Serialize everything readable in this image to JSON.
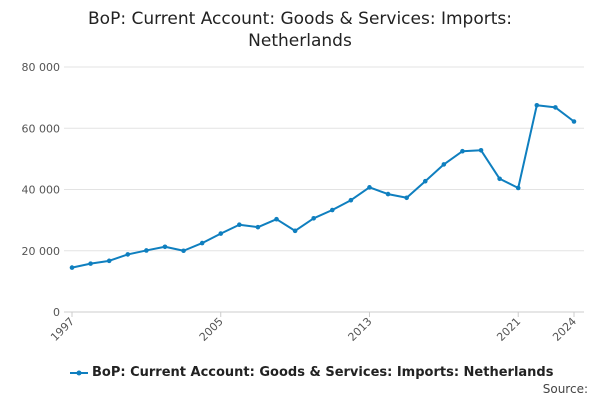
{
  "chart_data": {
    "type": "line",
    "title_line1": "BoP: Current Account: Goods & Services: Imports:",
    "title_line2": "Netherlands",
    "xlabel": "",
    "ylabel": "",
    "x": [
      1997,
      1998,
      1999,
      2000,
      2001,
      2002,
      2003,
      2004,
      2005,
      2006,
      2007,
      2008,
      2009,
      2010,
      2011,
      2012,
      2013,
      2014,
      2015,
      2016,
      2017,
      2018,
      2019,
      2020,
      2021,
      2022,
      2023,
      2024
    ],
    "series": [
      {
        "name": "BoP: Current Account: Goods & Services: Imports: Netherlands",
        "values": [
          14500,
          15800,
          16700,
          18800,
          20100,
          21300,
          20000,
          22500,
          25600,
          28500,
          27700,
          30300,
          26500,
          30600,
          33300,
          36500,
          40700,
          38500,
          37300,
          42700,
          48200,
          52500,
          52800,
          43500,
          40500,
          67500,
          66800,
          62200
        ]
      }
    ],
    "xlim": [
      1997,
      2024
    ],
    "ylim": [
      0,
      80000
    ],
    "y_ticks": [
      0,
      20000,
      40000,
      60000,
      80000
    ],
    "y_tick_labels": [
      "0",
      "20 000",
      "40 000",
      "60 000",
      "80 000"
    ],
    "x_tick_labels": [
      "1997",
      "2005",
      "2013",
      "2021",
      "2024"
    ],
    "grid": true,
    "legend_position": "bottom",
    "colors": {
      "series": "#0f7fbf",
      "grid": "#e3e3e3",
      "axis": "#cccccc"
    }
  },
  "source_label": "Source:"
}
